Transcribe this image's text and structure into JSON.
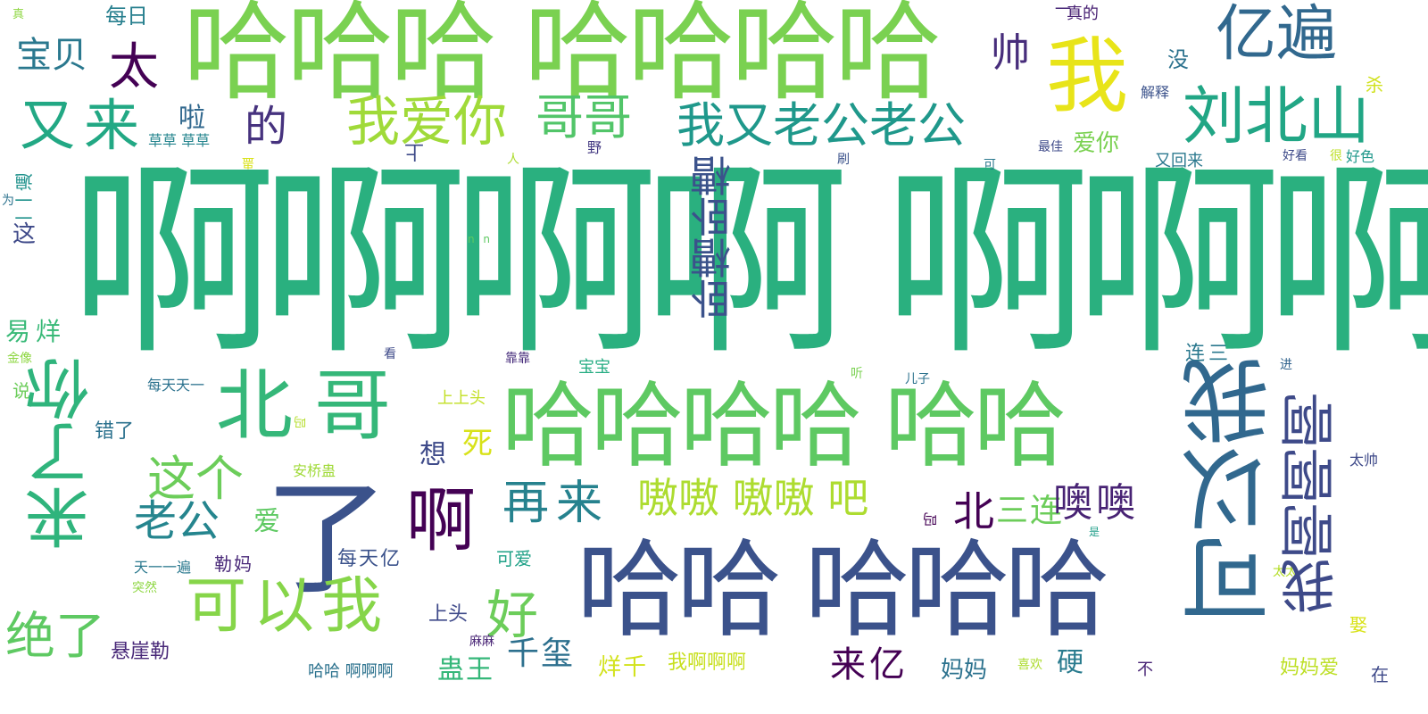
{
  "palette": {
    "background": "#ffffff",
    "dark_purple": "#440154",
    "indigo": "#3b528b",
    "teal_blue": "#31688e",
    "teal": "#21908d",
    "green": "#35b779",
    "sea_green": "#2ab07f",
    "light_green": "#6ccd5a",
    "lime": "#b5de2b",
    "yellow": "#fde725"
  },
  "words": [
    {
      "text": "啊啊啊啊 啊啊啊啊",
      "color": "#2ab07f"
    },
    {
      "text": "哈哈哈 哈哈哈哈",
      "color": "#7ad151"
    },
    {
      "text": "哈哈哈哈 哈哈",
      "color": "#5ec962"
    },
    {
      "text": "哈哈 哈哈哈",
      "color": "#3b528b"
    },
    {
      "text": "我",
      "color": "#e8e419"
    },
    {
      "text": "亿遍",
      "color": "#31688e"
    },
    {
      "text": "刘北山",
      "color": "#21a685"
    },
    {
      "text": "宝贝",
      "color": "#2a788e"
    },
    {
      "text": "太",
      "color": "#440154"
    },
    {
      "text": "又来",
      "color": "#22a884"
    },
    {
      "text": "的",
      "color": "#46327e"
    },
    {
      "text": "我爱你",
      "color": "#a0da39"
    },
    {
      "text": "哥哥",
      "color": "#52c569"
    },
    {
      "text": "我又老公老公",
      "color": "#1f988b"
    },
    {
      "text": "帅",
      "color": "#472d7b"
    },
    {
      "text": "没",
      "color": "#2c728e"
    },
    {
      "text": "每日",
      "color": "#277f8e"
    },
    {
      "text": "真的",
      "color": "#482173"
    },
    {
      "text": "杀",
      "color": "#d0e11c"
    },
    {
      "text": "解释",
      "color": "#3b528b"
    },
    {
      "text": "啦",
      "color": "#31688e"
    },
    {
      "text": "爱你",
      "color": "#7ad151"
    },
    {
      "text": "又回来",
      "color": "#2a788e"
    },
    {
      "text": "好看",
      "color": "#3e4a89"
    },
    {
      "text": "很",
      "color": "#bddf26"
    },
    {
      "text": "好色",
      "color": "#1f988b"
    },
    {
      "text": "草草 草草",
      "color": "#25858e"
    },
    {
      "text": "野",
      "color": "#443a83"
    },
    {
      "text": "人",
      "color": "#addc30"
    },
    {
      "text": "刷",
      "color": "#3b528b"
    },
    {
      "text": "可",
      "color": "#2a788e"
    },
    {
      "text": "最佳",
      "color": "#3e4a89"
    },
    {
      "text": "真",
      "color": "#8fd744"
    },
    {
      "text": "这",
      "color": "#3e4989"
    },
    {
      "text": "为",
      "color": "#2c728e"
    },
    {
      "text": "n n",
      "color": "#5ec962"
    },
    {
      "text": "易烊",
      "color": "#38b977"
    },
    {
      "text": "金像",
      "color": "#8fd744"
    },
    {
      "text": "说",
      "color": "#6ccd5a"
    },
    {
      "text": "每天天一",
      "color": "#2c728e"
    },
    {
      "text": "看",
      "color": "#3e4a89"
    },
    {
      "text": "靠靠",
      "color": "#472d7b"
    },
    {
      "text": "宝宝",
      "color": "#25ac82"
    },
    {
      "text": "听",
      "color": "#7ad151"
    },
    {
      "text": "儿子",
      "color": "#2c728e"
    },
    {
      "text": "连三",
      "color": "#2a788e"
    },
    {
      "text": "进",
      "color": "#32648e"
    },
    {
      "text": "北哥",
      "color": "#35b779"
    },
    {
      "text": "错了",
      "color": "#2c728e"
    },
    {
      "text": "上上头",
      "color": "#c2df23"
    },
    {
      "text": "想",
      "color": "#3e4a89"
    },
    {
      "text": "死",
      "color": "#d8e219"
    },
    {
      "text": "这个",
      "color": "#6ccd5a"
    },
    {
      "text": "老公",
      "color": "#25858e"
    },
    {
      "text": "安桥蛊",
      "color": "#a0da39"
    },
    {
      "text": "了",
      "color": "#3b528b"
    },
    {
      "text": "啊",
      "color": "#440154"
    },
    {
      "text": "再来",
      "color": "#26828e"
    },
    {
      "text": "嗷嗷 嗷嗷 吧",
      "color": "#addc30"
    },
    {
      "text": "北",
      "color": "#440154"
    },
    {
      "text": "三连",
      "color": "#6ccd5a"
    },
    {
      "text": "噢噢",
      "color": "#482374"
    },
    {
      "text": "太帅",
      "color": "#3e4989"
    },
    {
      "text": "爱",
      "color": "#5ec962"
    },
    {
      "text": "每天亿",
      "color": "#3b528b"
    },
    {
      "text": "可爱",
      "color": "#1fa187"
    },
    {
      "text": "天一一遍",
      "color": "#2a788e"
    },
    {
      "text": "勒妈",
      "color": "#482878"
    },
    {
      "text": "突然",
      "color": "#8fd744"
    },
    {
      "text": "可以我",
      "color": "#86d549"
    },
    {
      "text": "好",
      "color": "#6ccd5a"
    },
    {
      "text": "绝了",
      "color": "#5ec962"
    },
    {
      "text": "上头",
      "color": "#3e4989"
    },
    {
      "text": "千玺",
      "color": "#2d708e"
    },
    {
      "text": "来亿",
      "color": "#440154"
    },
    {
      "text": "硬",
      "color": "#297b8e"
    },
    {
      "text": "妈妈",
      "color": "#2c728e"
    },
    {
      "text": "悬崖勒",
      "color": "#482878"
    },
    {
      "text": "麻麻",
      "color": "#482475"
    },
    {
      "text": "蛊王",
      "color": "#35b779"
    },
    {
      "text": "烊千",
      "color": "#d2e21b"
    },
    {
      "text": "我啊啊啊",
      "color": "#c8e020"
    },
    {
      "text": "哈哈 啊啊啊",
      "color": "#2c728e"
    },
    {
      "text": "喜欢",
      "color": "#addc30"
    },
    {
      "text": "不",
      "color": "#482475"
    },
    {
      "text": "妈妈爱",
      "color": "#bddf26"
    },
    {
      "text": "在",
      "color": "#3e4989"
    },
    {
      "text": "是",
      "color": "#1f9e89"
    },
    {
      "text": "太太",
      "color": "#b5de2b"
    },
    {
      "text": "娶",
      "color": "#d8e219"
    },
    {
      "text": "卧槽卧槽",
      "color": "#3b528b"
    },
    {
      "text": "我啊啊啊",
      "color": "#3e4a89"
    },
    {
      "text": "可以我",
      "color": "#31688e"
    },
    {
      "text": "来了你",
      "color": "#2fb47c"
    },
    {
      "text": "蛊",
      "color": "#d8e219"
    },
    {
      "text": "上",
      "color": "#3e4a89"
    },
    {
      "text": "一一遍",
      "color": "#20928c"
    },
    {
      "text": "吗",
      "color": "#440154"
    },
    {
      "text": "吗",
      "color": "#b5de2b"
    },
    {
      "text": "一",
      "color": "#482878"
    }
  ]
}
